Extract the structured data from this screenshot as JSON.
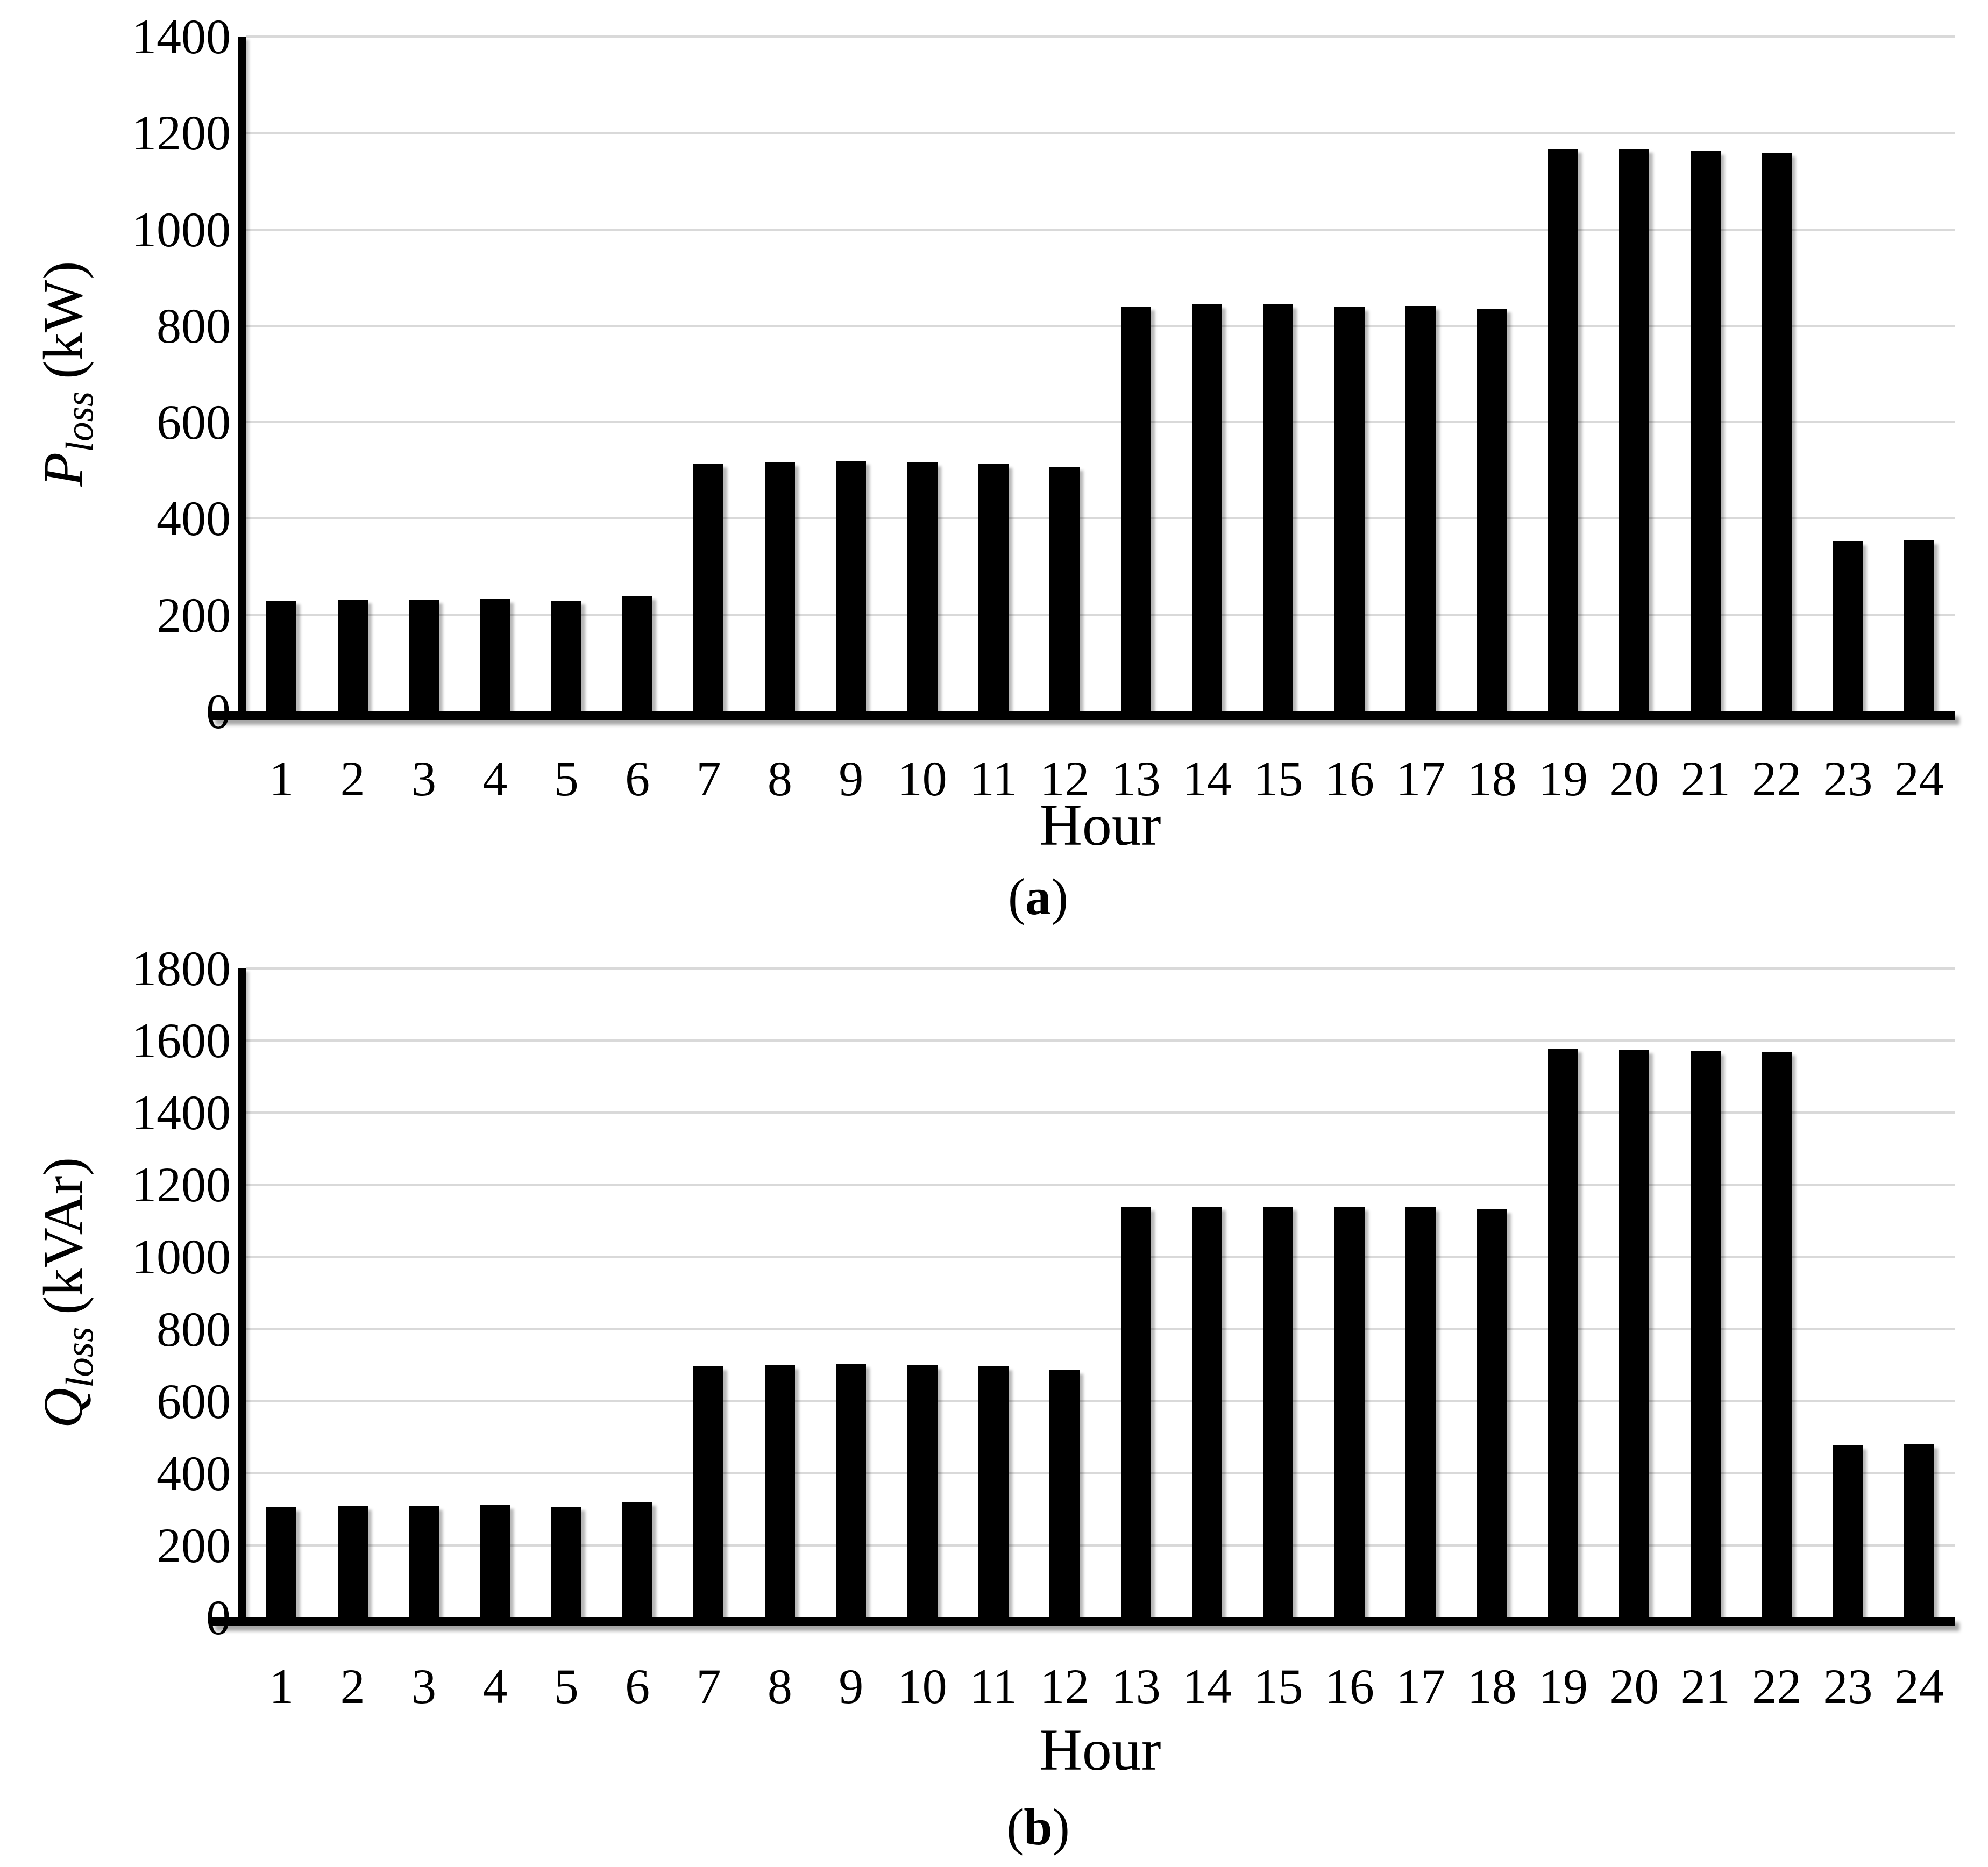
{
  "figure": {
    "background": "#ffffff",
    "bar_color": "#000000",
    "gridline_color": "#d9d9d9",
    "axis_color": "#000000",
    "caption_open": "(",
    "caption_close": ")",
    "charts": [
      {
        "caption_letter": "a",
        "x_title": "Hour",
        "y_symbol": "P",
        "y_subscript": "loss",
        "y_unit": "(kW)"
      },
      {
        "caption_letter": "b",
        "x_title": "Hour",
        "y_symbol": "Q",
        "y_subscript": "loss",
        "y_unit": "(kVAr)"
      }
    ]
  },
  "chart_data": [
    {
      "type": "bar",
      "panel": "(a)",
      "title": "",
      "xlabel": "Hour",
      "ylabel": "P_loss (kW)",
      "categories": [
        "1",
        "2",
        "3",
        "4",
        "5",
        "6",
        "7",
        "8",
        "9",
        "10",
        "11",
        "12",
        "13",
        "14",
        "15",
        "16",
        "17",
        "18",
        "19",
        "20",
        "21",
        "22",
        "23",
        "24"
      ],
      "values": [
        230,
        232,
        232,
        233,
        230,
        240,
        514,
        517,
        520,
        516,
        513,
        508,
        840,
        844,
        844,
        839,
        841,
        835,
        1167,
        1167,
        1162,
        1159,
        352,
        355
      ],
      "ylim": [
        0,
        1400
      ],
      "ytick_step": 200,
      "ytick_labels": [
        "0",
        "200",
        "400",
        "600",
        "800",
        "1000",
        "1200",
        "1400"
      ],
      "grid": true,
      "legend_position": "none",
      "bar_color": "#000000"
    },
    {
      "type": "bar",
      "panel": "(b)",
      "title": "",
      "xlabel": "Hour",
      "ylabel": "Q_loss (kVAr)",
      "categories": [
        "1",
        "2",
        "3",
        "4",
        "5",
        "6",
        "7",
        "8",
        "9",
        "10",
        "11",
        "12",
        "13",
        "14",
        "15",
        "16",
        "17",
        "18",
        "19",
        "20",
        "21",
        "22",
        "23",
        "24"
      ],
      "values": [
        306,
        308,
        309,
        311,
        307,
        320,
        697,
        700,
        704,
        700,
        697,
        686,
        1138,
        1140,
        1140,
        1140,
        1138,
        1132,
        1578,
        1575,
        1570,
        1569,
        477,
        480
      ],
      "ylim": [
        0,
        1800
      ],
      "ytick_step": 200,
      "ytick_labels": [
        "0",
        "200",
        "400",
        "600",
        "800",
        "1000",
        "1200",
        "1400",
        "1600",
        "1800"
      ],
      "grid": true,
      "legend_position": "none",
      "bar_color": "#000000"
    }
  ]
}
